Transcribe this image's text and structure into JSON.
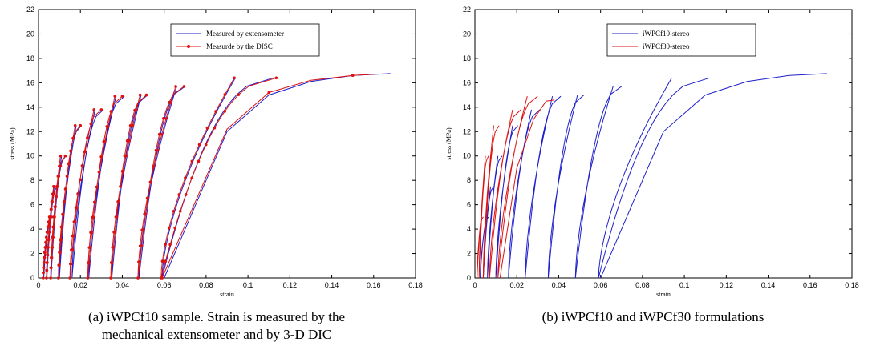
{
  "chart_data": [
    {
      "type": "line",
      "xlabel": "strain",
      "ylabel": "stress (MPa)",
      "xlim": [
        0,
        0.18
      ],
      "ylim": [
        0,
        22
      ],
      "xticks": [
        "0",
        "0.02",
        "0.04",
        "0.06",
        "0.08",
        "0.1",
        "0.12",
        "0.14",
        "0.16",
        "0.18"
      ],
      "yticks": [
        "0",
        "2",
        "4",
        "6",
        "8",
        "10",
        "12",
        "14",
        "16",
        "18",
        "20",
        "22"
      ],
      "legend_position": "top-center",
      "caption": [
        "(a) iWPCf10 sample. Strain is measured by the",
        "mechanical extensometer and by 3-D DIC"
      ],
      "series": [
        {
          "name": "Measured by extensometer",
          "color": "#1f1fcc",
          "marker": "none",
          "cycles": [
            {
              "s": 0.0025,
              "p": 0.0055,
              "r": 0.0065,
              "max": 5
            },
            {
              "s": 0.004,
              "p": 0.0075,
              "r": 0.009,
              "max": 7.5
            },
            {
              "s": 0.006,
              "p": 0.011,
              "r": 0.013,
              "max": 10
            },
            {
              "s": 0.01,
              "p": 0.018,
              "r": 0.0205,
              "max": 12.5
            },
            {
              "s": 0.016,
              "p": 0.027,
              "r": 0.031,
              "max": 13.8
            },
            {
              "s": 0.024,
              "p": 0.037,
              "r": 0.041,
              "max": 14.9
            },
            {
              "s": 0.035,
              "p": 0.049,
              "r": 0.052,
              "max": 15.0
            },
            {
              "s": 0.048,
              "p": 0.066,
              "r": 0.07,
              "max": 15.7
            },
            {
              "s": 0.059,
              "p": 0.094,
              "r": 0.112,
              "max": 16.4
            }
          ],
          "final": [
            [
              0.06,
              0
            ],
            [
              0.09,
              12.0
            ],
            [
              0.11,
              15.0
            ],
            [
              0.13,
              16.1
            ],
            [
              0.15,
              16.6
            ],
            [
              0.168,
              16.75
            ]
          ]
        },
        {
          "name": "Measurde by the DISC",
          "color": "#dd1111",
          "marker": "dot",
          "cycles": [
            {
              "s": 0.0022,
              "p": 0.0052,
              "r": 0.0062,
              "max": 5
            },
            {
              "s": 0.0038,
              "p": 0.0072,
              "r": 0.0088,
              "max": 7.5
            },
            {
              "s": 0.0058,
              "p": 0.0105,
              "r": 0.0128,
              "max": 10
            },
            {
              "s": 0.0095,
              "p": 0.0175,
              "r": 0.02,
              "max": 12.5
            },
            {
              "s": 0.015,
              "p": 0.0265,
              "r": 0.03,
              "max": 13.8
            },
            {
              "s": 0.0235,
              "p": 0.0365,
              "r": 0.04,
              "max": 14.9
            },
            {
              "s": 0.0345,
              "p": 0.0485,
              "r": 0.0515,
              "max": 15.0
            },
            {
              "s": 0.0475,
              "p": 0.0655,
              "r": 0.0695,
              "max": 15.7
            },
            {
              "s": 0.0585,
              "p": 0.0935,
              "r": 0.1135,
              "max": 16.4
            }
          ],
          "final": [
            [
              0.059,
              0
            ],
            [
              0.09,
              12.2
            ],
            [
              0.11,
              15.2
            ],
            [
              0.13,
              16.2
            ],
            [
              0.15,
              16.6
            ],
            [
              0.16,
              16.7
            ]
          ]
        }
      ]
    },
    {
      "type": "line",
      "xlabel": "strain",
      "ylabel": "stress (MPa)",
      "xlim": [
        0,
        0.18
      ],
      "ylim": [
        0,
        22
      ],
      "xticks": [
        "0",
        "0.02",
        "0.04",
        "0.06",
        "0.08",
        "0.1",
        "0.12",
        "0.14",
        "0.16",
        "0.18"
      ],
      "yticks": [
        "0",
        "2",
        "4",
        "6",
        "8",
        "10",
        "12",
        "14",
        "16",
        "18",
        "20",
        "22"
      ],
      "legend_position": "top-center",
      "caption": [
        "(b) iWPCf10 and iWPCf30 formulations"
      ],
      "series": [
        {
          "name": "iWPCf10-stereo",
          "color": "#1f1fcc",
          "marker": "none",
          "cycles": [
            {
              "s": 0.0025,
              "p": 0.0055,
              "r": 0.0065,
              "max": 5
            },
            {
              "s": 0.004,
              "p": 0.0075,
              "r": 0.009,
              "max": 7.5
            },
            {
              "s": 0.006,
              "p": 0.011,
              "r": 0.013,
              "max": 10
            },
            {
              "s": 0.01,
              "p": 0.018,
              "r": 0.0205,
              "max": 12.5
            },
            {
              "s": 0.016,
              "p": 0.027,
              "r": 0.031,
              "max": 13.8
            },
            {
              "s": 0.024,
              "p": 0.037,
              "r": 0.041,
              "max": 14.9
            },
            {
              "s": 0.035,
              "p": 0.049,
              "r": 0.052,
              "max": 15.0
            },
            {
              "s": 0.048,
              "p": 0.066,
              "r": 0.07,
              "max": 15.7
            },
            {
              "s": 0.059,
              "p": 0.094,
              "r": 0.112,
              "max": 16.4
            }
          ],
          "final": [
            [
              0.06,
              0
            ],
            [
              0.09,
              12.0
            ],
            [
              0.11,
              15.0
            ],
            [
              0.13,
              16.1
            ],
            [
              0.15,
              16.6
            ],
            [
              0.168,
              16.75
            ]
          ]
        },
        {
          "name": "iWPCf30-stereo",
          "color": "#dd1111",
          "marker": "none",
          "cycles": [
            {
              "s": 0.001,
              "p": 0.003,
              "r": 0.004,
              "max": 5
            },
            {
              "s": 0.002,
              "p": 0.005,
              "r": 0.0065,
              "max": 10
            },
            {
              "s": 0.004,
              "p": 0.009,
              "r": 0.0115,
              "max": 12.5
            },
            {
              "s": 0.007,
              "p": 0.018,
              "r": 0.022,
              "max": 13.8
            },
            {
              "s": 0.011,
              "p": 0.025,
              "r": 0.03,
              "max": 14.9
            }
          ],
          "final": [
            [
              0.012,
              0
            ],
            [
              0.02,
              9.0
            ],
            [
              0.028,
              13.0
            ],
            [
              0.034,
              14.5
            ],
            [
              0.038,
              14.6
            ]
          ]
        }
      ]
    }
  ]
}
